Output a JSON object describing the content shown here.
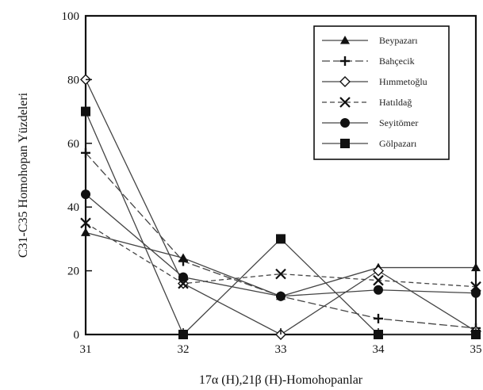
{
  "chart_data": {
    "type": "line",
    "title": "",
    "xlabel": "17α (H),21β (H)-Homohopanlar",
    "ylabel": "C31-C35 Homohopan Yüzdeleri",
    "x": [
      31,
      32,
      33,
      34,
      35
    ],
    "xlim": [
      31,
      35
    ],
    "ylim": [
      0,
      100
    ],
    "xticks": [
      "31",
      "32",
      "33",
      "34",
      "35"
    ],
    "yticks": [
      "0",
      "20",
      "40",
      "60",
      "80",
      "100"
    ],
    "grid": false,
    "legend_position": "top-right",
    "series": [
      {
        "name": "Beypazarı",
        "marker": "triangle",
        "dash": "",
        "values": [
          32,
          24,
          12,
          21,
          21
        ]
      },
      {
        "name": "Bahçecik",
        "marker": "plus",
        "dash": "10 4",
        "values": [
          57,
          23,
          12,
          5,
          2
        ]
      },
      {
        "name": "Hımmetoğlu",
        "marker": "diamond-open",
        "dash": "",
        "values": [
          80,
          16,
          0,
          20,
          1
        ]
      },
      {
        "name": "Hatıldağ",
        "marker": "cross",
        "dash": "6 4",
        "values": [
          35,
          16,
          19,
          17,
          15
        ]
      },
      {
        "name": "Seyitömer",
        "marker": "circle",
        "dash": "",
        "values": [
          44,
          18,
          12,
          14,
          13
        ]
      },
      {
        "name": "Gölpazarı",
        "marker": "square",
        "dash": "",
        "values": [
          70,
          0,
          30,
          0,
          0
        ]
      }
    ]
  }
}
